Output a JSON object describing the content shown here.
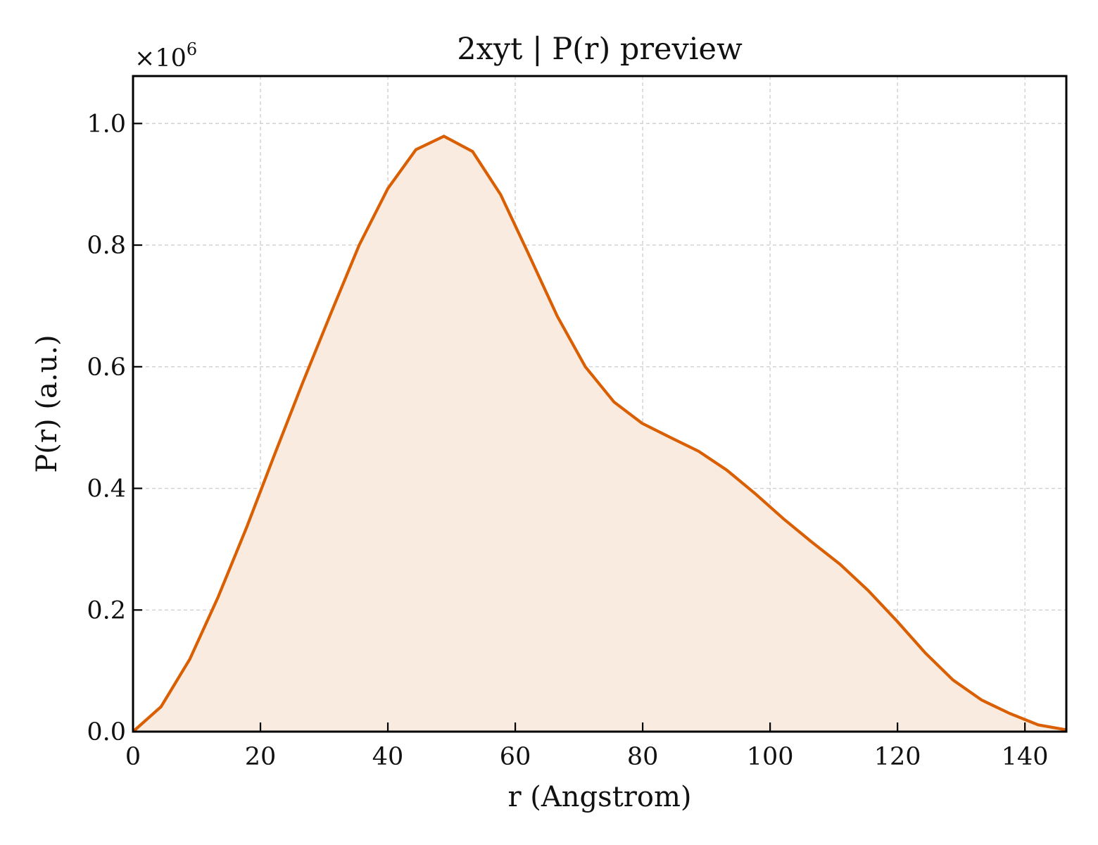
{
  "chart_data": {
    "type": "area",
    "title": "2xyt | P(r) preview",
    "xlabel": "r (Angstrom)",
    "ylabel": "P(r) (a.u.)",
    "y_scale_label": "×10",
    "y_scale_exponent": "6",
    "xlim": [
      0,
      146.5
    ],
    "ylim": [
      0,
      1.078
    ],
    "y_multiplier": 1000000,
    "x_ticks": [
      0,
      20,
      40,
      60,
      80,
      100,
      120,
      140
    ],
    "x_tick_labels": [
      "0",
      "20",
      "40",
      "60",
      "80",
      "100",
      "120",
      "140"
    ],
    "y_ticks": [
      0.0,
      0.2,
      0.4,
      0.6,
      0.8,
      1.0
    ],
    "y_tick_labels": [
      "0.0",
      "0.2",
      "0.4",
      "0.6",
      "0.8",
      "1.0"
    ],
    "grid": true,
    "colors": {
      "line": "#d95f02",
      "fill": "#f9ebe0",
      "grid": "#d0d0d0",
      "axis": "#000000"
    },
    "series": [
      {
        "x": [
          0,
          4.4,
          8.9,
          13.3,
          17.8,
          22.2,
          26.6,
          31.1,
          35.5,
          40.0,
          44.4,
          48.8,
          53.3,
          57.7,
          62.1,
          66.6,
          71.0,
          75.5,
          79.9,
          84.3,
          88.8,
          93.2,
          97.7,
          102.1,
          106.5,
          111.0,
          115.4,
          119.9,
          124.3,
          128.7,
          133.2,
          137.6,
          142.1,
          146.5
        ],
        "y": [
          0.0,
          0.041,
          0.119,
          0.22,
          0.335,
          0.455,
          0.573,
          0.689,
          0.8,
          0.893,
          0.957,
          0.979,
          0.954,
          0.883,
          0.785,
          0.683,
          0.6,
          0.542,
          0.507,
          0.484,
          0.461,
          0.43,
          0.391,
          0.35,
          0.312,
          0.275,
          0.232,
          0.182,
          0.13,
          0.085,
          0.052,
          0.03,
          0.011,
          0.003
        ]
      }
    ]
  }
}
